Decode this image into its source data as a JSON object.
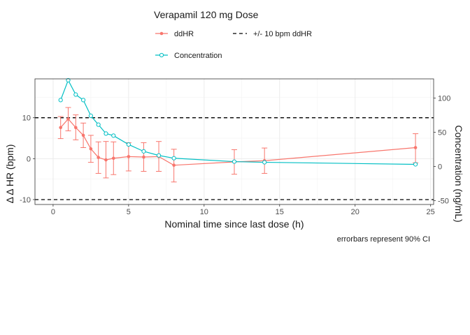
{
  "chart_data": {
    "type": "line",
    "title": "Verapamil 120 mg Dose",
    "xlabel": "Nominal time since last dose (h)",
    "ylabel": "Δ Δ HR (bpm)",
    "y2label": "Concentration (ng/mL)",
    "caption": "errorbars represent 90% CI",
    "xlim": [
      -1.2,
      25.2
    ],
    "ylim": [
      -11.2,
      19.5
    ],
    "y2lim": [
      -55.7,
      128
    ],
    "x_ticks": [
      0,
      5,
      10,
      15,
      20,
      25
    ],
    "y_ticks": [
      -10,
      0,
      10
    ],
    "y2_ticks": [
      -50,
      0,
      50,
      100
    ],
    "grid": true,
    "legend_position": "top",
    "colors": {
      "ddHR": "#F8766D",
      "concentration": "#00BFC4",
      "reference": "#000000"
    },
    "legend": {
      "ddhr": "ddHR",
      "concentration": "Concentration",
      "reference": "+/- 10 bpm ddHR"
    },
    "reference_lines": [
      10,
      -10
    ],
    "series": [
      {
        "name": "ddHR",
        "axis": "left",
        "x": [
          0.5,
          1,
          1.5,
          2,
          2.5,
          3,
          3.5,
          4,
          5,
          6,
          7,
          8,
          12,
          14,
          24
        ],
        "y": [
          7.6,
          9.7,
          7.6,
          5.7,
          2.4,
          0.3,
          -0.3,
          0.1,
          0.5,
          0.4,
          0.5,
          -1.6,
          -0.8,
          -0.5,
          2.7
        ],
        "ci_low": [
          4.9,
          6.8,
          4.6,
          2.7,
          -0.9,
          -3.6,
          -4.7,
          -3.9,
          -3.0,
          -3.1,
          -3.1,
          -5.7,
          -3.8,
          -3.6,
          -1.0
        ],
        "ci_high": [
          10.3,
          12.5,
          10.7,
          8.7,
          5.7,
          4.1,
          4.2,
          4.1,
          3.9,
          3.9,
          4.2,
          2.3,
          2.2,
          2.6,
          6.1
        ]
      },
      {
        "name": "Concentration",
        "axis": "right",
        "x": [
          0.5,
          1,
          1.5,
          2,
          2.5,
          3,
          3.5,
          4,
          5,
          6,
          7,
          8,
          12,
          14,
          24
        ],
        "y": [
          97,
          126,
          105,
          97,
          74,
          61,
          48,
          45,
          32,
          22,
          16,
          12,
          7,
          6,
          3
        ]
      }
    ]
  }
}
